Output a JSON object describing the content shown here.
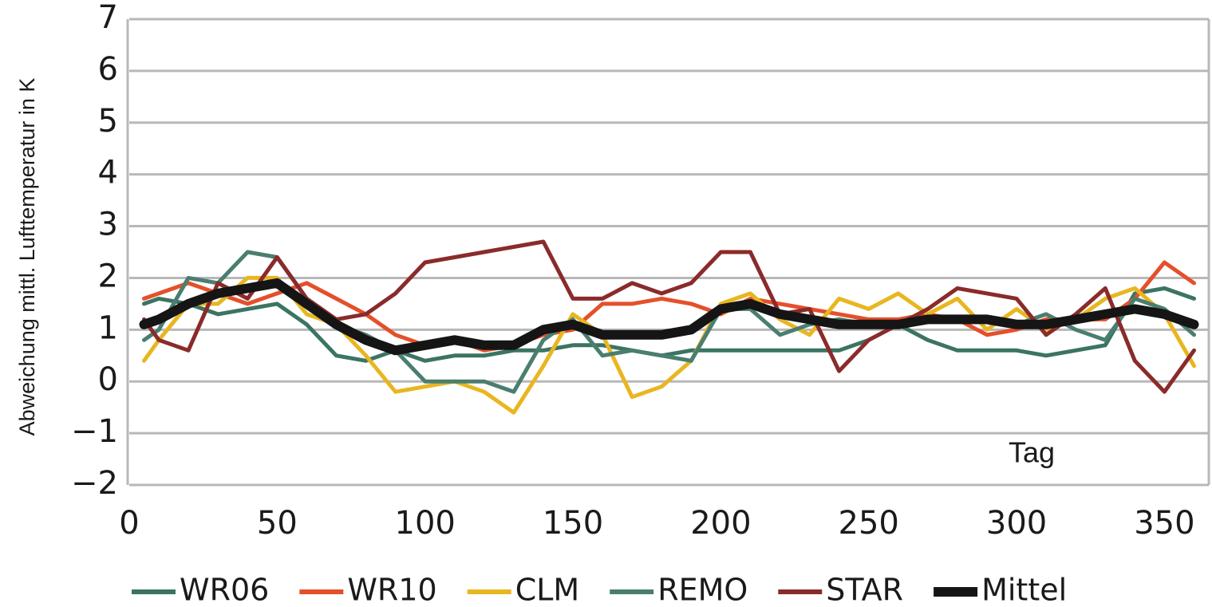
{
  "chart_data": {
    "type": "line",
    "y_label": "Abweichung mittl. Lufttemperatur in K",
    "x_label": "Tag",
    "x": [
      5,
      10,
      20,
      30,
      40,
      50,
      60,
      70,
      80,
      90,
      100,
      110,
      120,
      130,
      140,
      150,
      160,
      170,
      180,
      190,
      200,
      210,
      220,
      230,
      240,
      250,
      260,
      270,
      280,
      290,
      300,
      310,
      320,
      330,
      340,
      350,
      360
    ],
    "series": [
      {
        "name": "WR06",
        "color": "#3b7463",
        "linewidth": 5,
        "values": [
          1.5,
          1.6,
          1.5,
          1.3,
          1.4,
          1.5,
          1.1,
          0.5,
          0.4,
          0.6,
          0.4,
          0.5,
          0.5,
          0.6,
          0.6,
          0.7,
          0.7,
          0.6,
          0.5,
          0.6,
          0.6,
          0.6,
          0.6,
          0.6,
          0.6,
          0.8,
          1.1,
          0.8,
          0.6,
          0.6,
          0.6,
          0.5,
          0.6,
          0.7,
          1.7,
          1.8,
          1.6
        ]
      },
      {
        "name": "WR10",
        "color": "#e4502a",
        "linewidth": 5,
        "values": [
          1.6,
          1.7,
          1.9,
          1.7,
          1.5,
          1.7,
          1.9,
          1.6,
          1.3,
          0.9,
          0.7,
          0.8,
          0.6,
          0.7,
          0.9,
          1.0,
          1.5,
          1.5,
          1.6,
          1.5,
          1.3,
          1.6,
          1.5,
          1.4,
          1.3,
          1.2,
          1.2,
          1.3,
          1.2,
          0.9,
          1.0,
          1.2,
          1.2,
          1.2,
          1.6,
          2.3,
          1.9
        ]
      },
      {
        "name": "CLM",
        "color": "#e8b620",
        "linewidth": 5,
        "values": [
          0.4,
          0.8,
          1.5,
          1.5,
          2.0,
          2.0,
          1.3,
          1.1,
          0.5,
          -0.2,
          -0.1,
          0.0,
          -0.2,
          -0.6,
          0.3,
          1.3,
          0.9,
          -0.3,
          -0.1,
          0.4,
          1.5,
          1.7,
          1.2,
          0.9,
          1.6,
          1.4,
          1.7,
          1.3,
          1.6,
          1.0,
          1.4,
          1.0,
          1.2,
          1.6,
          1.8,
          1.3,
          0.3
        ]
      },
      {
        "name": "REMO",
        "color": "#4a7e70",
        "linewidth": 5,
        "values": [
          0.8,
          1.0,
          2.0,
          1.9,
          2.5,
          2.4,
          1.6,
          1.1,
          0.9,
          0.6,
          0.0,
          0.0,
          0.0,
          -0.2,
          0.8,
          1.2,
          0.5,
          0.6,
          0.5,
          0.4,
          1.4,
          1.4,
          0.9,
          1.1,
          1.2,
          1.1,
          1.1,
          1.2,
          1.2,
          1.2,
          1.1,
          1.3,
          1.0,
          0.8,
          1.6,
          1.4,
          0.9
        ]
      },
      {
        "name": "STAR",
        "color": "#8a2b2b",
        "linewidth": 5,
        "values": [
          1.2,
          0.8,
          0.6,
          1.9,
          1.6,
          2.4,
          1.6,
          1.2,
          1.3,
          1.7,
          2.3,
          2.4,
          2.5,
          2.6,
          2.7,
          1.6,
          1.6,
          1.9,
          1.7,
          1.9,
          2.5,
          2.5,
          1.3,
          1.4,
          0.2,
          0.8,
          1.1,
          1.4,
          1.8,
          1.7,
          1.6,
          0.9,
          1.3,
          1.8,
          0.4,
          -0.2,
          0.6
        ]
      },
      {
        "name": "Mittel",
        "color": "#151515",
        "linewidth": 12,
        "values": [
          1.1,
          1.2,
          1.5,
          1.7,
          1.8,
          1.9,
          1.5,
          1.1,
          0.8,
          0.6,
          0.7,
          0.8,
          0.7,
          0.7,
          1.0,
          1.1,
          0.9,
          0.9,
          0.9,
          1.0,
          1.4,
          1.5,
          1.3,
          1.2,
          1.1,
          1.1,
          1.1,
          1.2,
          1.2,
          1.2,
          1.1,
          1.1,
          1.2,
          1.3,
          1.4,
          1.3,
          1.1
        ]
      }
    ],
    "xlim": [
      0,
      365
    ],
    "xticks": [
      0,
      50,
      100,
      150,
      200,
      250,
      300,
      350
    ],
    "ylim": [
      -2,
      7
    ],
    "yticks": [
      {
        "value": -2,
        "label": "−2"
      },
      {
        "value": -1,
        "label": "−1"
      },
      0,
      1,
      2,
      3,
      4,
      5,
      6,
      7
    ],
    "grid": true
  }
}
